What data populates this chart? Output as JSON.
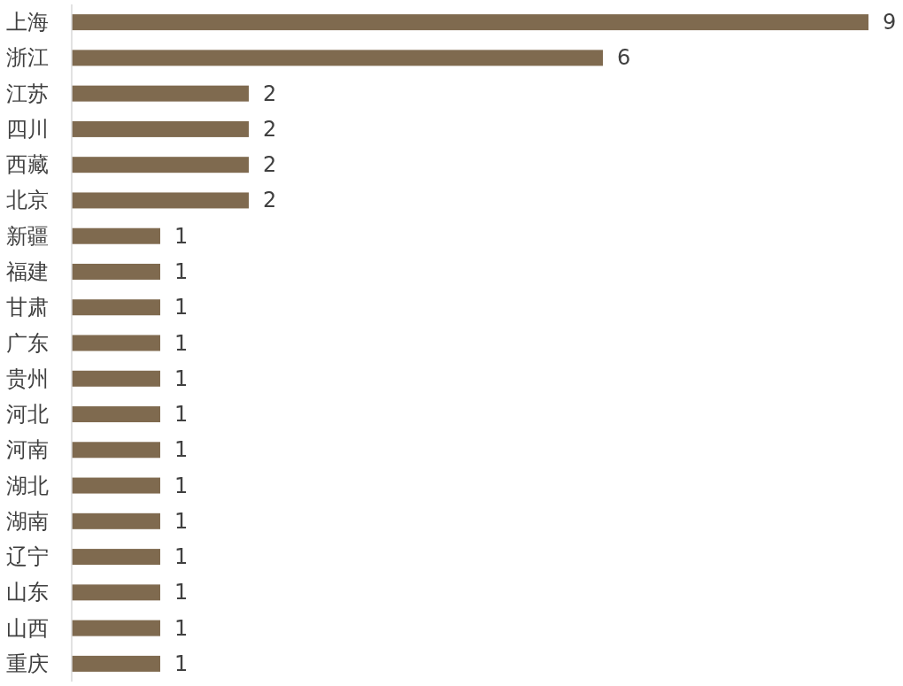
{
  "chart_data": {
    "type": "bar",
    "orientation": "horizontal",
    "data_labels": true,
    "color": "#7f6a4f",
    "categories": [
      "上海",
      "浙江",
      "江苏",
      "四川",
      "西藏",
      "北京",
      "新疆",
      "福建",
      "甘肃",
      "广东",
      "贵州",
      "河北",
      "河南",
      "湖北",
      "湖南",
      "辽宁",
      "山东",
      "山西",
      "重庆"
    ],
    "values": [
      9,
      6,
      2,
      2,
      2,
      2,
      1,
      1,
      1,
      1,
      1,
      1,
      1,
      1,
      1,
      1,
      1,
      1,
      1
    ]
  }
}
